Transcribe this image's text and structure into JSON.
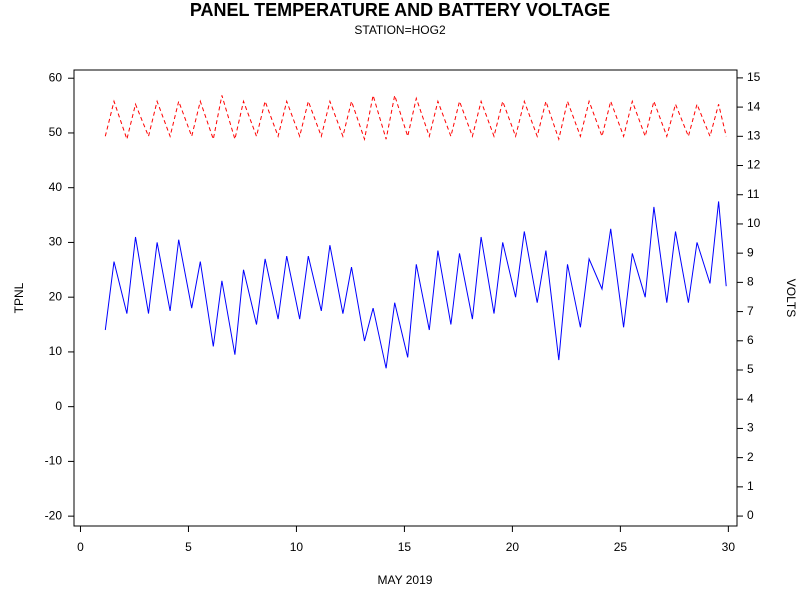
{
  "chart_data": {
    "type": "line",
    "title": "PANEL TEMPERATURE AND BATTERY VOLTAGE",
    "subtitle": "STATION=HOG2",
    "x_label": "MAY 2019",
    "y_label": "TPNL",
    "y2_label": "VOLTS",
    "x": [
      1.15,
      1.55,
      2.15,
      2.55,
      3.15,
      3.55,
      4.15,
      4.55,
      5.15,
      5.55,
      6.15,
      6.55,
      7.15,
      7.55,
      8.15,
      8.55,
      9.15,
      9.55,
      10.15,
      10.55,
      11.15,
      11.55,
      12.15,
      12.55,
      13.15,
      13.55,
      14.15,
      14.55,
      15.15,
      15.55,
      16.15,
      16.55,
      17.15,
      17.55,
      18.15,
      18.55,
      19.15,
      19.55,
      20.15,
      20.55,
      21.15,
      21.55,
      22.15,
      22.55,
      23.15,
      23.55,
      24.15,
      24.55,
      25.15,
      25.55,
      26.15,
      26.55,
      27.15,
      27.55,
      28.15,
      28.55,
      29.15,
      29.55,
      29.9
    ],
    "series": [
      {
        "name": "TPNL",
        "color": "#0000ff",
        "dashed": false,
        "values": [
          14,
          26.5,
          17,
          31,
          17,
          30,
          17.5,
          30.5,
          18,
          26.5,
          11,
          23,
          9.5,
          25,
          15,
          27,
          16,
          27.5,
          16,
          27.5,
          17.5,
          29.5,
          17,
          25.5,
          12,
          18,
          7,
          19,
          9,
          26,
          14,
          28.5,
          15,
          28,
          16,
          31,
          17,
          30,
          20,
          32,
          19,
          28.5,
          8.5,
          26,
          14.5,
          27,
          21.5,
          32.5,
          14.5,
          28,
          20,
          36.5,
          19,
          32,
          19,
          30,
          22.5,
          37.5,
          22
        ]
      },
      {
        "name": "VOLTS",
        "color": "#ff0000",
        "dashed": true,
        "axis": "y2",
        "values": [
          13.0,
          14.2,
          12.9,
          14.1,
          13.0,
          14.2,
          13.0,
          14.2,
          13.0,
          14.2,
          12.9,
          14.4,
          12.9,
          14.2,
          13.0,
          14.2,
          13.0,
          14.2,
          13.0,
          14.2,
          13.0,
          14.2,
          13.0,
          14.2,
          12.9,
          14.4,
          12.9,
          14.4,
          13.0,
          14.3,
          13.0,
          14.2,
          13.0,
          14.2,
          13.0,
          14.2,
          13.0,
          14.2,
          13.0,
          14.2,
          13.0,
          14.2,
          12.9,
          14.2,
          13.0,
          14.2,
          13.0,
          14.2,
          13.0,
          14.2,
          13.0,
          14.2,
          13.0,
          14.1,
          13.0,
          14.1,
          13.0,
          14.1,
          13.0
        ]
      }
    ],
    "xlim": [
      -0.3,
      30.4
    ],
    "xticks": [
      0,
      5,
      10,
      15,
      20,
      25,
      30
    ],
    "ylim": [
      -21.8,
      61.5
    ],
    "yticks": [
      -20,
      -10,
      0,
      10,
      20,
      30,
      40,
      50,
      60
    ],
    "y2lim": [
      -0.34,
      15.27
    ],
    "y2ticks": [
      0,
      1,
      2,
      3,
      4,
      5,
      6,
      7,
      8,
      9,
      10,
      11,
      12,
      13,
      14,
      15
    ]
  }
}
